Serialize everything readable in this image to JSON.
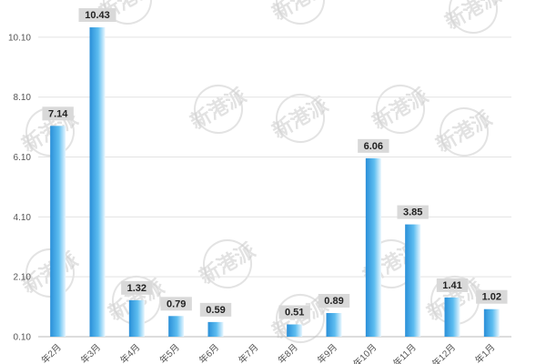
{
  "chart_data": {
    "type": "bar",
    "categories": [
      "年2月",
      "年3月",
      "年4月",
      "年5月",
      "年6月",
      "年7月",
      "年8月",
      "年9月",
      "年10月",
      "年11月",
      "年12月",
      "年1月"
    ],
    "values": [
      7.14,
      10.43,
      1.32,
      0.79,
      0.59,
      null,
      0.51,
      0.89,
      6.06,
      3.85,
      1.41,
      1.02
    ],
    "value_labels": [
      "7.14",
      "10.43",
      "1.32",
      "0.79",
      "0.59",
      "",
      "0.51",
      "0.89",
      "6.06",
      "3.85",
      "1.41",
      "1.02"
    ],
    "y_ticks": [
      0.1,
      2.1,
      4.1,
      6.1,
      8.1,
      10.1
    ],
    "y_tick_labels": [
      "0.10",
      "2.10",
      "4.10",
      "6.10",
      "8.10",
      "10.10"
    ],
    "ylim": [
      0.1,
      11.1
    ],
    "title": "",
    "xlabel": "",
    "ylabel": "",
    "grid": true,
    "legend": "none",
    "colors": {
      "bar_dark": "#2a8fd8",
      "bar_mid": "#5dbdf0",
      "bar_light": "#e9f7ff",
      "grid": "#e3e3e3",
      "axis": "#bbbbbb",
      "label_bg": "#d9d9d9"
    }
  },
  "watermark": {
    "text": "新港派"
  }
}
